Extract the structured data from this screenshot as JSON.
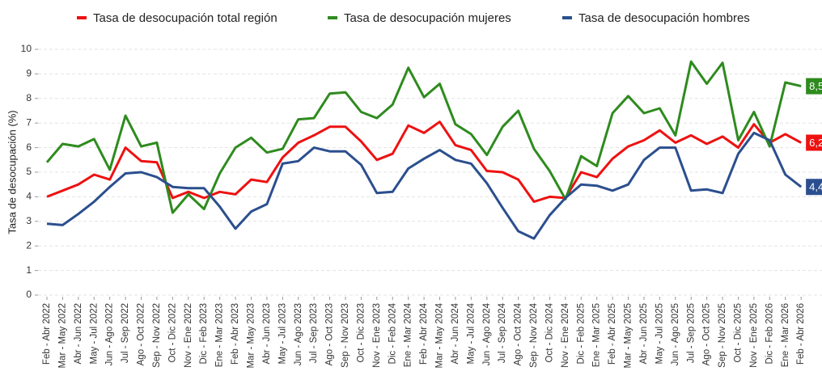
{
  "chart_data": {
    "type": "line",
    "y_label": "Tasa de desocupación (%)",
    "categories": [
      "Feb - Abr 2022",
      "Mar - May 2022",
      "Abr - Jun 2022",
      "May - Jul 2022",
      "Jun - Ago 2022",
      "Jul - Sep 2022",
      "Ago - Oct 2022",
      "Sep - Nov 2022",
      "Oct - Dic 2022",
      "Nov - Ene 2022",
      "Dic - Feb 2023",
      "Ene - Mar 2023",
      "Feb - Abr 2023",
      "Mar - May 2023",
      "Abr - Jun 2023",
      "May - Jul 2023",
      "Jun - Ago 2023",
      "Jul - Sep 2023",
      "Ago - Oct 2023",
      "Sep - Nov 2023",
      "Oct - Dic 2023",
      "Nov - Ene 2023",
      "Dic - Feb 2024",
      "Ene - Mar 2024",
      "Feb - Abr 2024",
      "Mar - May 2024",
      "Abr - Jun 2024",
      "May - Jul 2024",
      "Jun - Ago 2024",
      "Jul - Sep 2024",
      "Ago - Oct 2024",
      "Sep - Nov 2024",
      "Oct - Dic 2024",
      "Nov - Ene 2024",
      "Dic - Feb 2025",
      "Ene - Mar 2025",
      "Feb - Abr 2025",
      "Mar - May 2025",
      "Abr - Jun 2025",
      "May - Jul 2025",
      "Jun - Ago 2025",
      "Jul - Sep 2025",
      "Ago - Oct 2025",
      "Sep - Nov 2025",
      "Oct - Dic 2025",
      "Nov - Ene 2025",
      "Dic - Feb 2026",
      "Ene - Mar 2026",
      "Feb - Abr 2026"
    ],
    "series": [
      {
        "name": "Tasa de desocupación total región",
        "color": "#ee1111",
        "values": [
          4.0,
          4.25,
          4.5,
          4.9,
          4.7,
          6.0,
          5.45,
          5.4,
          3.95,
          4.2,
          3.95,
          4.2,
          4.1,
          4.7,
          4.6,
          5.6,
          6.2,
          6.5,
          6.85,
          6.85,
          6.25,
          5.5,
          5.75,
          6.9,
          6.6,
          7.05,
          6.1,
          5.9,
          5.05,
          5.0,
          4.7,
          3.8,
          4.0,
          3.95,
          5.0,
          4.8,
          5.55,
          6.05,
          6.3,
          6.7,
          6.2,
          6.5,
          6.15,
          6.45,
          6.0,
          6.95,
          6.2,
          6.55,
          6.2
        ],
        "value_labels": [
          null,
          null,
          null,
          null,
          null,
          null,
          null,
          null,
          null,
          null,
          null,
          null,
          null,
          null,
          null,
          null,
          null,
          null,
          null,
          null,
          null,
          null,
          null,
          null,
          null,
          null,
          null,
          null,
          null,
          null,
          null,
          null,
          null,
          null,
          null,
          null,
          null,
          null,
          null,
          null,
          null,
          null,
          null,
          null,
          null,
          null,
          null,
          null,
          "6,2"
        ]
      },
      {
        "name": "Tasa de desocupación mujeres",
        "color": "#2e8b1e",
        "values": [
          5.4,
          6.15,
          6.05,
          6.35,
          5.1,
          7.3,
          6.05,
          6.2,
          3.35,
          4.1,
          3.5,
          4.95,
          6.0,
          6.4,
          5.8,
          5.95,
          7.15,
          7.2,
          8.2,
          8.25,
          7.45,
          7.2,
          7.75,
          9.25,
          8.05,
          8.6,
          6.95,
          6.55,
          5.7,
          6.85,
          7.5,
          5.95,
          5.05,
          3.9,
          5.65,
          5.25,
          7.4,
          8.1,
          7.4,
          7.6,
          6.5,
          9.5,
          8.6,
          9.45,
          6.3,
          7.45,
          6.05,
          8.65,
          8.5
        ],
        "value_labels": [
          null,
          null,
          null,
          null,
          null,
          null,
          null,
          null,
          null,
          null,
          null,
          null,
          null,
          null,
          null,
          null,
          null,
          null,
          null,
          null,
          null,
          null,
          null,
          null,
          null,
          null,
          null,
          null,
          null,
          null,
          null,
          null,
          null,
          null,
          null,
          null,
          null,
          null,
          null,
          null,
          null,
          null,
          null,
          null,
          null,
          null,
          null,
          null,
          "8,5"
        ]
      },
      {
        "name": "Tasa de desocupación hombres",
        "color": "#2b4f8e",
        "values": [
          2.9,
          2.85,
          3.3,
          3.8,
          4.4,
          4.95,
          5.0,
          4.8,
          4.4,
          4.35,
          4.35,
          3.6,
          2.7,
          3.4,
          3.7,
          5.35,
          5.45,
          6.0,
          5.85,
          5.85,
          5.3,
          4.15,
          4.2,
          5.15,
          5.55,
          5.9,
          5.5,
          5.35,
          4.55,
          3.55,
          2.6,
          2.3,
          3.25,
          3.95,
          4.5,
          4.45,
          4.25,
          4.5,
          5.5,
          6.0,
          6.0,
          4.25,
          4.3,
          4.15,
          5.75,
          6.6,
          6.3,
          4.9,
          4.4
        ],
        "value_labels": [
          null,
          null,
          null,
          null,
          null,
          null,
          null,
          null,
          null,
          null,
          null,
          null,
          null,
          null,
          null,
          null,
          null,
          null,
          null,
          null,
          null,
          null,
          null,
          null,
          null,
          null,
          null,
          null,
          null,
          null,
          null,
          null,
          null,
          null,
          null,
          null,
          null,
          null,
          null,
          null,
          null,
          null,
          null,
          null,
          null,
          null,
          null,
          null,
          "4,4"
        ]
      }
    ],
    "ylim": [
      0,
      10
    ],
    "yticks": [
      0,
      1,
      2,
      3,
      4,
      5,
      6,
      7,
      8,
      9,
      10
    ],
    "grid": true
  }
}
